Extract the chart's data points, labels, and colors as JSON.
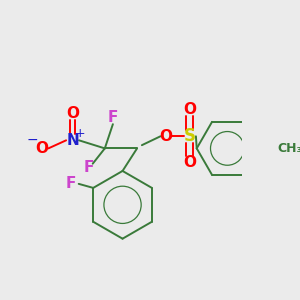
{
  "bg_color": "#ebebeb",
  "colors": {
    "C": "#3a7a3a",
    "O": "#ff0000",
    "N": "#2020cc",
    "F": "#cc44cc",
    "S": "#cccc00",
    "minus": "#2020cc"
  },
  "fs": 11,
  "fss": 8
}
